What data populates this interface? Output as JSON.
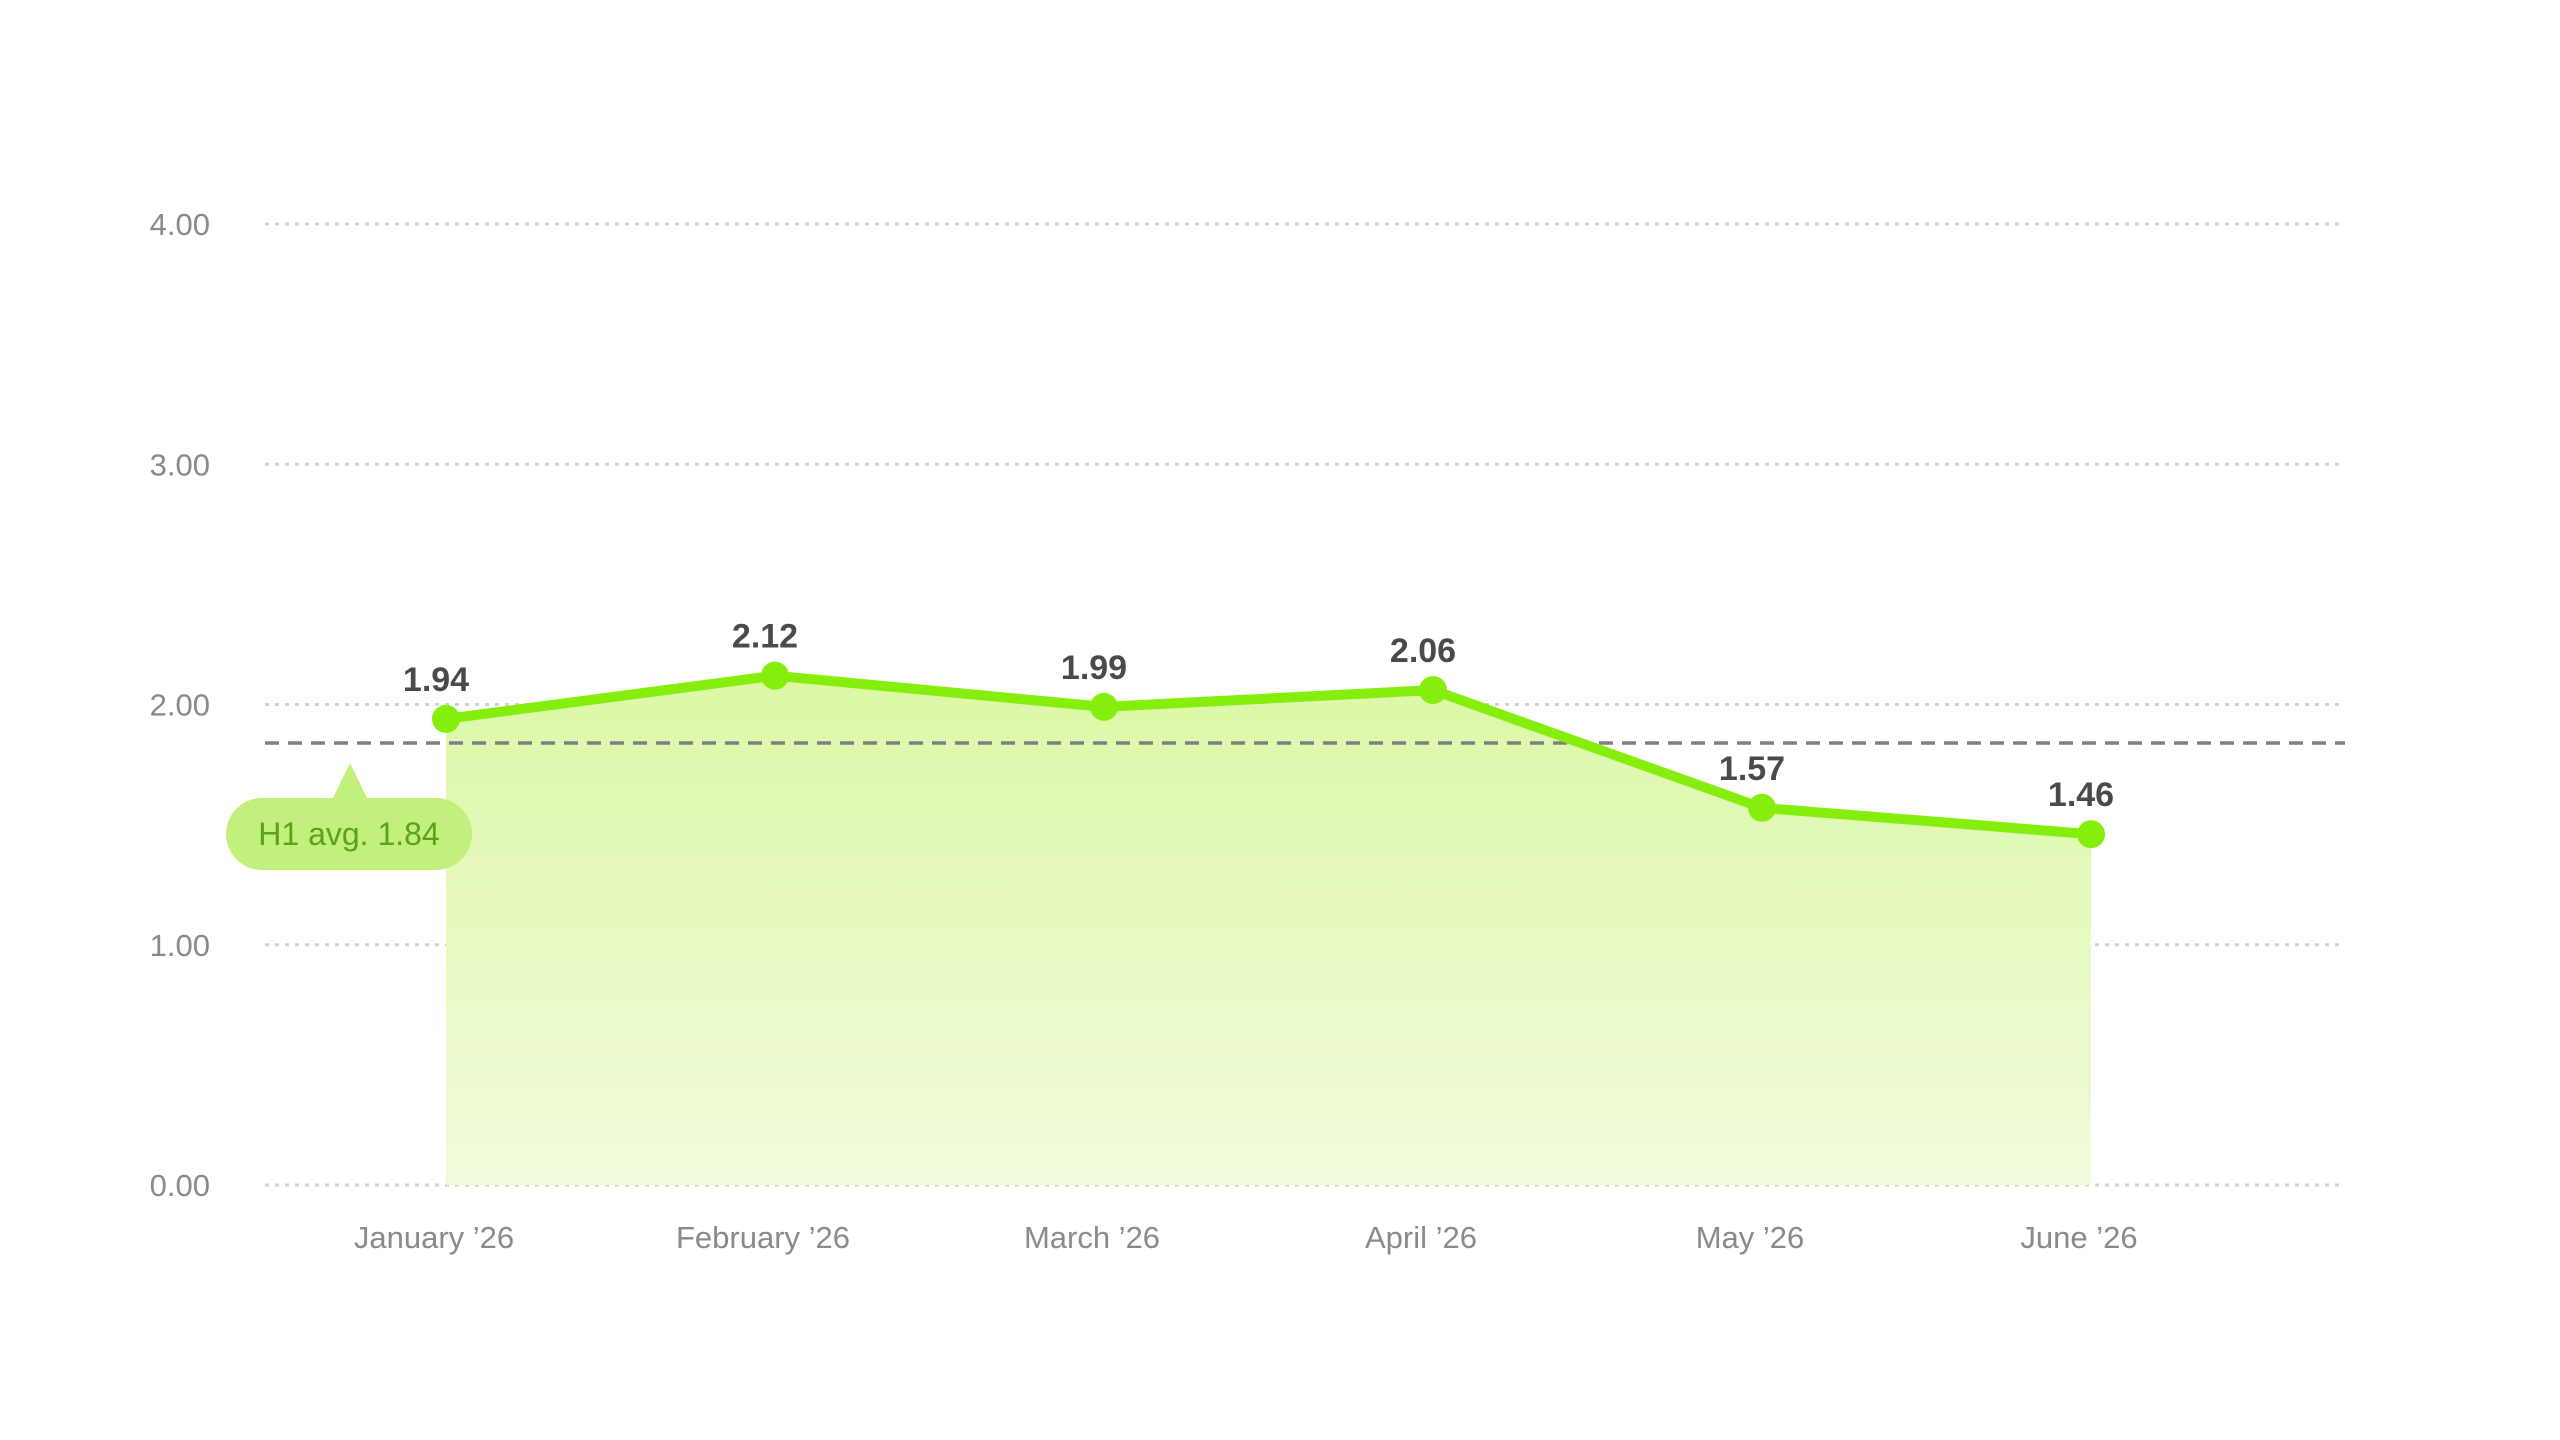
{
  "chart_data": {
    "type": "area",
    "title": "",
    "xlabel": "",
    "ylabel": "",
    "categories": [
      "January ’26",
      "February ’26",
      "March ’26",
      "April ’26",
      "May ’26",
      "June ’26"
    ],
    "series": [
      {
        "values": [
          1.94,
          2.12,
          1.99,
          2.06,
          1.57,
          1.46
        ],
        "labels": [
          "1.94",
          "2.12",
          "1.99",
          "2.06",
          "1.57",
          "1.46"
        ]
      }
    ],
    "ylim": [
      0,
      4
    ],
    "yticks": [
      0,
      1,
      2,
      3,
      4
    ],
    "ytick_labels": [
      "0.00",
      "1.00",
      "2.00",
      "3.00",
      "4.00"
    ],
    "grid": true,
    "reference_line": {
      "value": 1.84,
      "label": "H1 avg. 1.84"
    },
    "colors": {
      "line": "#86ee0c",
      "area_top": "#dcf8a6",
      "area_bottom": "#f1fbdc",
      "reference_line": "#7f7f7f",
      "reference_badge": "#c2f07c",
      "reference_text": "#5aa21a",
      "grid": "#d2d2d2",
      "tick_text": "#8a8a8a",
      "value_text": "#4a4a4a"
    }
  }
}
